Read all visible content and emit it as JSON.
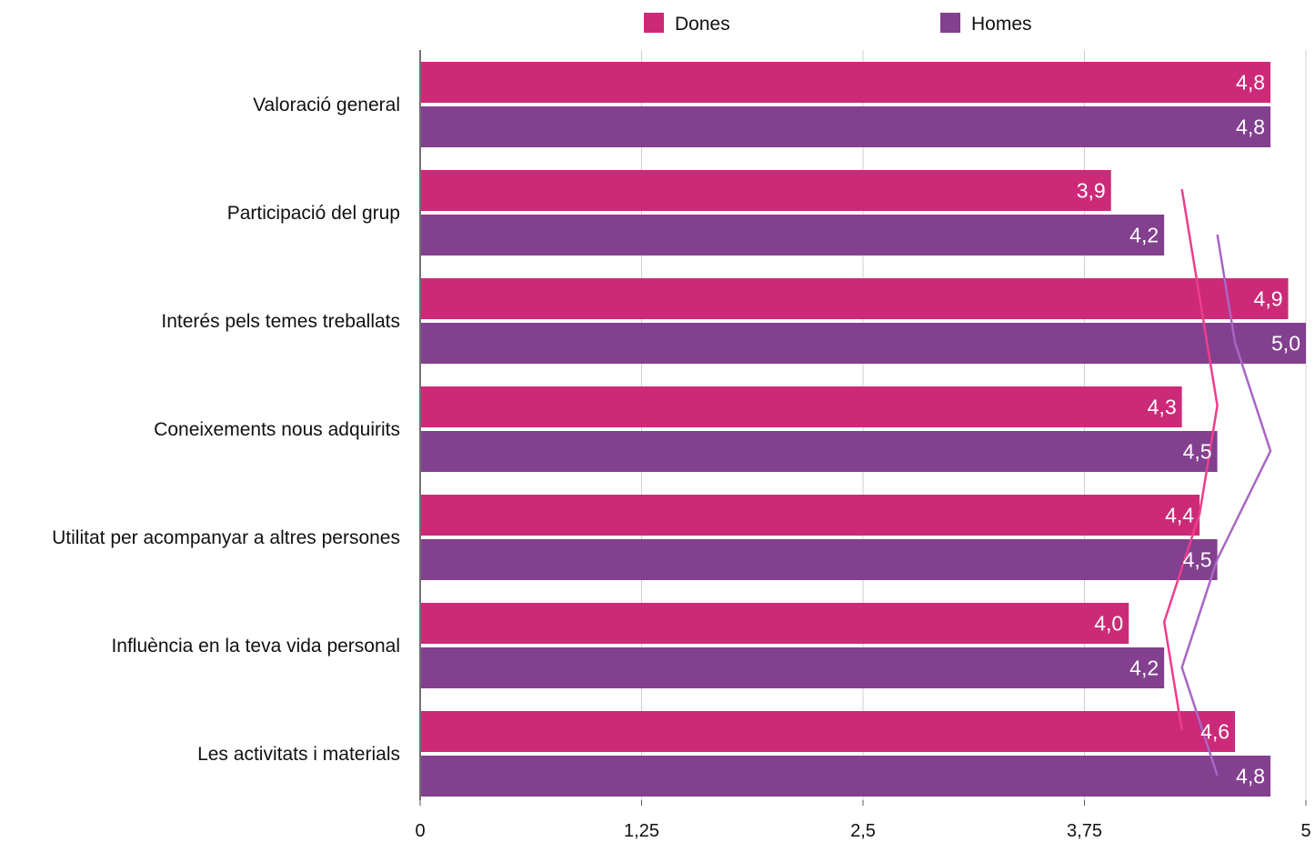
{
  "chart_data": {
    "type": "bar",
    "orientation": "horizontal",
    "categories": [
      "Valoració general",
      "Participació del grup",
      "Interés pels temes treballats",
      "Coneixements nous adquirits",
      "Utilitat per acompanyar a altres persones",
      "Influència en la teva vida personal",
      "Les activitats i materials"
    ],
    "series": [
      {
        "name": "Dones",
        "color": "#cc2a78",
        "trend_color": "#ee3d8c",
        "values": [
          4.8,
          3.9,
          4.9,
          4.3,
          4.4,
          4.0,
          4.6
        ],
        "value_labels": [
          "4,8",
          "3,9",
          "4,9",
          "4,3",
          "4,4",
          "4,0",
          "4,6"
        ]
      },
      {
        "name": "Homes",
        "color": "#82408f",
        "trend_color": "#a866c4",
        "values": [
          4.8,
          4.2,
          5.0,
          4.5,
          4.5,
          4.2,
          4.8
        ],
        "value_labels": [
          "4,8",
          "4,2",
          "5,0",
          "4,5",
          "4,5",
          "4,2",
          "4,8"
        ]
      }
    ],
    "xlim": [
      0,
      5
    ],
    "x_ticks": [
      0,
      1.25,
      2.5,
      3.75,
      5
    ],
    "x_tick_labels": [
      "0",
      "1,25",
      "2,5",
      "3,75",
      "5"
    ],
    "grid": true,
    "legend": "top",
    "title": "",
    "xlabel": "",
    "ylabel": "",
    "overlay_trend_lines": {
      "Dones": [
        4.3,
        4.4,
        4.5,
        4.4,
        4.2,
        4.3
      ],
      "Homes": [
        4.5,
        4.6,
        4.8,
        4.5,
        4.3,
        4.5
      ]
    }
  }
}
